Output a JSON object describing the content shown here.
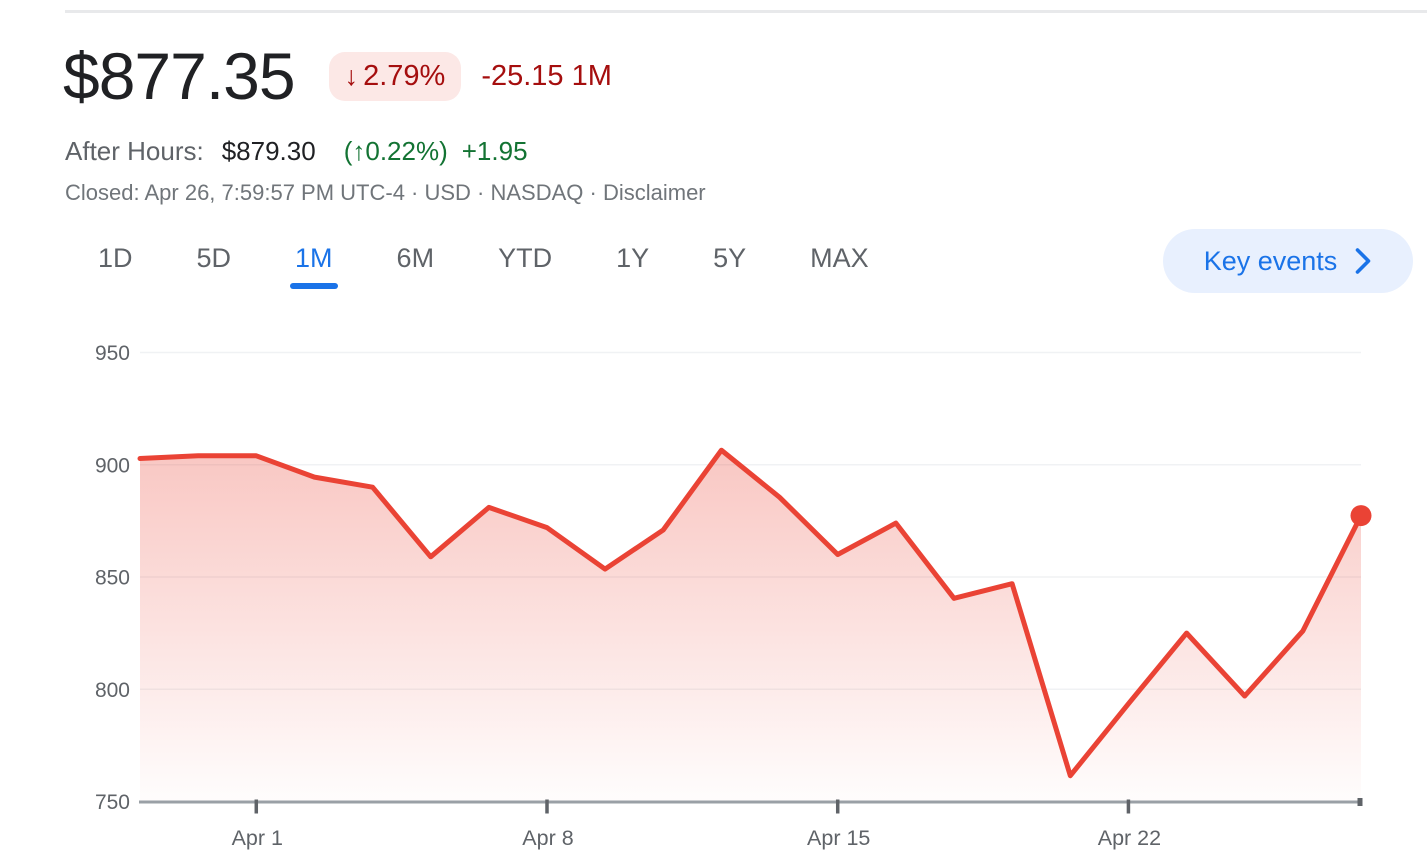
{
  "header": {
    "price": "$877.35",
    "change_badge": {
      "arrow": "↓",
      "percent": "2.79%"
    },
    "change_text": "-25.15 1M",
    "after_hours": {
      "label": "After Hours:",
      "price": "$879.30",
      "percent": "(↑0.22%)",
      "change": "+1.95"
    },
    "status_prefix": "Closed: Apr 26, 7:59:57 PM UTC-4 · USD · NASDAQ · ",
    "disclaimer_label": "Disclaimer"
  },
  "tabs": {
    "items": [
      {
        "label": "1D",
        "active": false
      },
      {
        "label": "5D",
        "active": false
      },
      {
        "label": "1M",
        "active": true
      },
      {
        "label": "6M",
        "active": false
      },
      {
        "label": "YTD",
        "active": false
      },
      {
        "label": "1Y",
        "active": false
      },
      {
        "label": "5Y",
        "active": false
      },
      {
        "label": "MAX",
        "active": false
      }
    ]
  },
  "key_events": {
    "label": "Key events",
    "chevron_icon": "chevron-right"
  },
  "colors": {
    "accent_blue": "#1a73e8",
    "pill_bg": "#e8f0fe",
    "negative_red_text": "#a50e0e",
    "negative_badge_bg": "#fce8e6",
    "positive_green": "#137333",
    "primary_text": "#202124",
    "secondary_text": "#5f6368"
  },
  "chart_data": {
    "type": "area",
    "x": [
      "Mar 27",
      "Mar 28",
      "Apr 1",
      "Apr 2",
      "Apr 3",
      "Apr 4",
      "Apr 5",
      "Apr 8",
      "Apr 9",
      "Apr 10",
      "Apr 11",
      "Apr 12",
      "Apr 15",
      "Apr 16",
      "Apr 17",
      "Apr 18",
      "Apr 19",
      "Apr 22",
      "Apr 23",
      "Apr 24",
      "Apr 25",
      "Apr 26"
    ],
    "values": [
      902.8,
      904.0,
      904.0,
      894.5,
      890.0,
      859.0,
      881.0,
      872.0,
      853.5,
      871.0,
      906.5,
      885.5,
      860.0,
      874.0,
      840.5,
      847.0,
      761.5,
      793.5,
      825.0,
      797.0,
      826.0,
      877.35
    ],
    "last_value": 877.35,
    "ylim": [
      750,
      950
    ],
    "yticks": [
      950,
      900,
      850,
      800,
      750
    ],
    "xtick_labels": [
      "Apr 1",
      "Apr 8",
      "Apr 15",
      "Apr 22"
    ],
    "xtick_indices": [
      2,
      7,
      12,
      17
    ],
    "grid": true,
    "legend": "none",
    "line_color": "#ea4335",
    "fill_color": "#ea4335",
    "fill_opacity_top": 0.3,
    "grid_color": "#f0f2f4",
    "axis_color": "#9aa0a6",
    "tick_color": "#5f6368",
    "label_color": "#5f6368",
    "end_dot": true
  }
}
